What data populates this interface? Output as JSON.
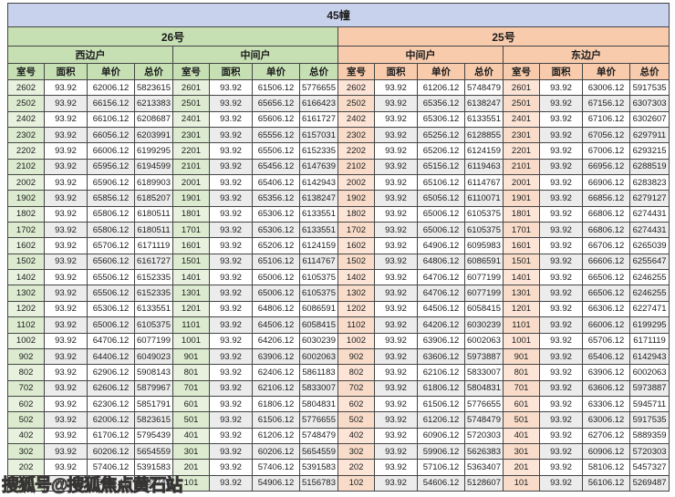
{
  "title": "45幢",
  "watermark": "搜狐号@搜狐焦点黄石站",
  "columns": [
    "室号",
    "面积",
    "单价",
    "总价"
  ],
  "colors": {
    "title_bg": "#c8d2ec",
    "building_26": "#c6e0b4",
    "building_25": "#f8cbad",
    "room_tint_26": "#e7f1dd",
    "room_tint_25": "#fce4d6",
    "alt_row": "#ececec",
    "border": "#454545"
  },
  "buildings": [
    {
      "label": "26号",
      "groups": [
        {
          "label": "西边户",
          "rows": [
            [
              "2602",
              "93.92",
              "62006.12",
              "5823615"
            ],
            [
              "2502",
              "93.92",
              "66156.12",
              "6213383"
            ],
            [
              "2402",
              "93.92",
              "66106.12",
              "6208687"
            ],
            [
              "2302",
              "93.92",
              "66056.12",
              "6203991"
            ],
            [
              "2202",
              "93.92",
              "66006.12",
              "6199295"
            ],
            [
              "2102",
              "93.92",
              "65956.12",
              "6194599"
            ],
            [
              "2002",
              "93.92",
              "65906.12",
              "6189903"
            ],
            [
              "1902",
              "93.92",
              "65856.12",
              "6185207"
            ],
            [
              "1802",
              "93.92",
              "65806.12",
              "6180511"
            ],
            [
              "1702",
              "93.92",
              "65806.12",
              "6180511"
            ],
            [
              "1602",
              "93.92",
              "65706.12",
              "6171119"
            ],
            [
              "1502",
              "93.92",
              "65606.12",
              "6161727"
            ],
            [
              "1402",
              "93.92",
              "65506.12",
              "6152335"
            ],
            [
              "1302",
              "93.92",
              "65506.12",
              "6152335"
            ],
            [
              "1202",
              "93.92",
              "65306.12",
              "6133551"
            ],
            [
              "1102",
              "93.92",
              "65006.12",
              "6105375"
            ],
            [
              "1002",
              "93.92",
              "64706.12",
              "6077199"
            ],
            [
              "902",
              "93.92",
              "64406.12",
              "6049023"
            ],
            [
              "802",
              "93.92",
              "62906.12",
              "5908143"
            ],
            [
              "702",
              "93.92",
              "62606.12",
              "5879967"
            ],
            [
              "602",
              "93.92",
              "62306.12",
              "5851791"
            ],
            [
              "502",
              "93.92",
              "62006.12",
              "5823615"
            ],
            [
              "402",
              "93.92",
              "61706.12",
              "5795439"
            ],
            [
              "302",
              "93.92",
              "60206.12",
              "5654559"
            ],
            [
              "202",
              "93.92",
              "57406.12",
              "5391583"
            ],
            [
              "102",
              "93.92",
              "55406.12",
              "5203743"
            ]
          ]
        },
        {
          "label": "中间户",
          "rows": [
            [
              "2601",
              "93.92",
              "61506.12",
              "5776655"
            ],
            [
              "2501",
              "93.92",
              "65656.12",
              "6166423"
            ],
            [
              "2401",
              "93.92",
              "65606.12",
              "6161727"
            ],
            [
              "2301",
              "93.92",
              "65556.12",
              "6157031"
            ],
            [
              "2201",
              "93.92",
              "65506.12",
              "6152335"
            ],
            [
              "2101",
              "93.92",
              "65456.12",
              "6147639"
            ],
            [
              "2001",
              "93.92",
              "65406.12",
              "6142943"
            ],
            [
              "1901",
              "93.92",
              "65356.12",
              "6138247"
            ],
            [
              "1801",
              "93.92",
              "65306.12",
              "6133551"
            ],
            [
              "1701",
              "93.92",
              "65306.12",
              "6133551"
            ],
            [
              "1601",
              "93.92",
              "65206.12",
              "6124159"
            ],
            [
              "1501",
              "93.92",
              "65106.12",
              "6114767"
            ],
            [
              "1401",
              "93.92",
              "65006.12",
              "6105375"
            ],
            [
              "1301",
              "93.92",
              "65006.12",
              "6105375"
            ],
            [
              "1201",
              "93.92",
              "64806.12",
              "6086591"
            ],
            [
              "1101",
              "93.92",
              "64506.12",
              "6058415"
            ],
            [
              "1001",
              "93.92",
              "64206.12",
              "6030239"
            ],
            [
              "901",
              "93.92",
              "63906.12",
              "6002063"
            ],
            [
              "801",
              "93.92",
              "62406.12",
              "5861183"
            ],
            [
              "701",
              "93.92",
              "62106.12",
              "5833007"
            ],
            [
              "601",
              "93.92",
              "61806.12",
              "5804831"
            ],
            [
              "501",
              "93.92",
              "61506.12",
              "5776655"
            ],
            [
              "401",
              "93.92",
              "61206.12",
              "5748479"
            ],
            [
              "301",
              "93.92",
              "60206.12",
              "5654559"
            ],
            [
              "201",
              "93.92",
              "57406.12",
              "5391583"
            ],
            [
              "101",
              "93.92",
              "54906.12",
              "5156783"
            ]
          ]
        }
      ]
    },
    {
      "label": "25号",
      "groups": [
        {
          "label": "中间户",
          "rows": [
            [
              "2602",
              "93.92",
              "61206.12",
              "5748479"
            ],
            [
              "2502",
              "93.92",
              "65356.12",
              "6138247"
            ],
            [
              "2402",
              "93.92",
              "65306.12",
              "6133551"
            ],
            [
              "2302",
              "93.92",
              "65256.12",
              "6128855"
            ],
            [
              "2202",
              "93.92",
              "65206.12",
              "6124159"
            ],
            [
              "2102",
              "93.92",
              "65156.12",
              "6119463"
            ],
            [
              "2002",
              "93.92",
              "65106.12",
              "6114767"
            ],
            [
              "1902",
              "93.92",
              "65056.12",
              "6110071"
            ],
            [
              "1802",
              "93.92",
              "65006.12",
              "6105375"
            ],
            [
              "1702",
              "93.92",
              "65006.12",
              "6105375"
            ],
            [
              "1602",
              "93.92",
              "64906.12",
              "6095983"
            ],
            [
              "1502",
              "93.92",
              "64806.12",
              "6086591"
            ],
            [
              "1402",
              "93.92",
              "64706.12",
              "6077199"
            ],
            [
              "1302",
              "93.92",
              "64706.12",
              "6077199"
            ],
            [
              "1202",
              "93.92",
              "64506.12",
              "6058415"
            ],
            [
              "1102",
              "93.92",
              "64206.12",
              "6030239"
            ],
            [
              "1002",
              "93.92",
              "63906.12",
              "6002063"
            ],
            [
              "902",
              "93.92",
              "63606.12",
              "5973887"
            ],
            [
              "802",
              "93.92",
              "62106.12",
              "5833007"
            ],
            [
              "702",
              "93.92",
              "61806.12",
              "5804831"
            ],
            [
              "602",
              "93.92",
              "61506.12",
              "5776655"
            ],
            [
              "502",
              "93.92",
              "61206.12",
              "5748479"
            ],
            [
              "402",
              "93.92",
              "60906.12",
              "5720303"
            ],
            [
              "302",
              "93.92",
              "59906.12",
              "5626383"
            ],
            [
              "202",
              "93.92",
              "57106.12",
              "5363407"
            ],
            [
              "102",
              "93.92",
              "54606.12",
              "5128607"
            ]
          ]
        },
        {
          "label": "东边户",
          "rows": [
            [
              "2601",
              "93.92",
              "63006.12",
              "5917535"
            ],
            [
              "2501",
              "93.92",
              "67156.12",
              "6307303"
            ],
            [
              "2401",
              "93.92",
              "67106.12",
              "6302607"
            ],
            [
              "2301",
              "93.92",
              "67056.12",
              "6297911"
            ],
            [
              "2201",
              "93.92",
              "67006.12",
              "6293215"
            ],
            [
              "2101",
              "93.92",
              "66956.12",
              "6288519"
            ],
            [
              "2001",
              "93.92",
              "66906.12",
              "6283823"
            ],
            [
              "1901",
              "93.92",
              "66856.12",
              "6279127"
            ],
            [
              "1801",
              "93.92",
              "66806.12",
              "6274431"
            ],
            [
              "1701",
              "93.92",
              "66806.12",
              "6274431"
            ],
            [
              "1601",
              "93.92",
              "66706.12",
              "6265039"
            ],
            [
              "1501",
              "93.92",
              "66606.12",
              "6255647"
            ],
            [
              "1401",
              "93.92",
              "66506.12",
              "6246255"
            ],
            [
              "1301",
              "93.92",
              "66506.12",
              "6246255"
            ],
            [
              "1201",
              "93.92",
              "66306.12",
              "6227471"
            ],
            [
              "1101",
              "93.92",
              "66006.12",
              "6199295"
            ],
            [
              "1001",
              "93.92",
              "65706.12",
              "6171119"
            ],
            [
              "901",
              "93.92",
              "65406.12",
              "6142943"
            ],
            [
              "801",
              "93.92",
              "63906.12",
              "6002063"
            ],
            [
              "701",
              "93.92",
              "63606.12",
              "5973887"
            ],
            [
              "601",
              "93.92",
              "63306.12",
              "5945711"
            ],
            [
              "501",
              "93.92",
              "63006.12",
              "5917535"
            ],
            [
              "401",
              "93.92",
              "62706.12",
              "5889359"
            ],
            [
              "301",
              "93.92",
              "60906.12",
              "5720303"
            ],
            [
              "201",
              "93.92",
              "58106.12",
              "5457327"
            ],
            [
              "101",
              "93.92",
              "56106.12",
              "5269487"
            ]
          ]
        }
      ]
    }
  ]
}
